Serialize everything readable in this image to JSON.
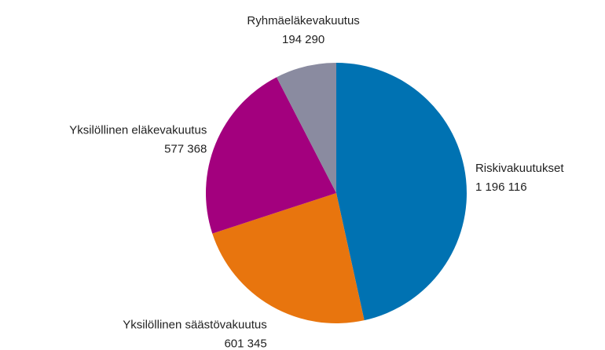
{
  "chart_data": {
    "type": "pie",
    "categories": [
      "Riskivakuutukset",
      "Yksilöllinen säästövakuutus",
      "Yksilöllinen eläkevakuutus",
      "Ryhmäeläkevakuutus"
    ],
    "values": [
      1196116,
      601345,
      577368,
      194290
    ],
    "value_labels": [
      "1 196 116",
      "601 345",
      "577 368",
      "194 290"
    ],
    "colors": [
      "#0072b2",
      "#e8750e",
      "#a3007e",
      "#8a8ba0"
    ]
  }
}
